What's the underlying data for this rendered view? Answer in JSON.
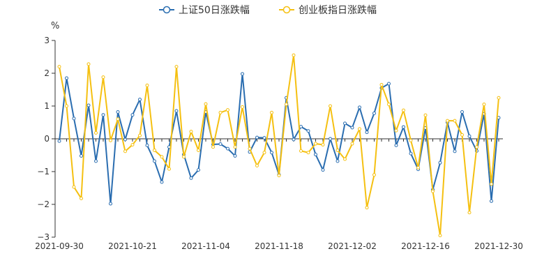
{
  "chart_data": {
    "type": "line",
    "title": "",
    "ylabel": "%",
    "ylim": [
      -3,
      3
    ],
    "yticks": [
      -3,
      -2,
      -1,
      0,
      1,
      2,
      3
    ],
    "xtick_labels": [
      "2021-09-30",
      "2021-10-21",
      "2021-11-04",
      "2021-11-18",
      "2021-12-02",
      "2021-12-16",
      "2021-12-30"
    ],
    "legend_position": "top-center",
    "series": [
      {
        "name": "上证50日涨跌幅",
        "color": "#2a6db0",
        "values": [
          -0.07,
          1.85,
          0.62,
          -0.52,
          1.02,
          -0.68,
          0.73,
          -1.98,
          0.82,
          -0.02,
          0.73,
          1.2,
          -0.2,
          -0.68,
          -1.32,
          -0.25,
          0.85,
          -0.48,
          -1.2,
          -0.95,
          0.82,
          -0.17,
          -0.16,
          -0.3,
          -0.52,
          1.98,
          -0.4,
          0.04,
          0.03,
          -0.42,
          -1.1,
          1.25,
          -0.02,
          0.37,
          0.24,
          -0.48,
          -0.95,
          0.0,
          -0.68,
          0.47,
          0.34,
          0.96,
          0.2,
          0.78,
          1.55,
          1.68,
          -0.2,
          0.36,
          -0.45,
          -0.93,
          0.33,
          -1.55,
          -0.73,
          0.5,
          -0.38,
          0.82,
          0.08,
          -0.37,
          0.76,
          -1.9,
          0.64
        ]
      },
      {
        "name": "创业板指日涨跌幅",
        "color": "#f5c011",
        "values": [
          2.2,
          1.0,
          -1.47,
          -1.82,
          2.28,
          0.18,
          1.88,
          -0.05,
          0.6,
          -0.38,
          -0.18,
          0.1,
          1.63,
          -0.35,
          -0.55,
          -0.92,
          2.2,
          -0.55,
          0.22,
          -0.35,
          1.06,
          -0.25,
          0.8,
          0.88,
          -0.25,
          0.97,
          -0.3,
          -0.82,
          -0.42,
          0.8,
          -1.12,
          1.05,
          2.55,
          -0.37,
          -0.42,
          -0.15,
          -0.18,
          1.0,
          -0.35,
          -0.62,
          -0.15,
          0.3,
          -2.1,
          -1.1,
          1.65,
          1.05,
          0.25,
          0.87,
          -0.05,
          -0.88,
          0.72,
          -1.6,
          -2.95,
          0.55,
          0.55,
          0.12,
          -2.25,
          -0.25,
          1.05,
          -1.38,
          1.25
        ]
      }
    ]
  }
}
